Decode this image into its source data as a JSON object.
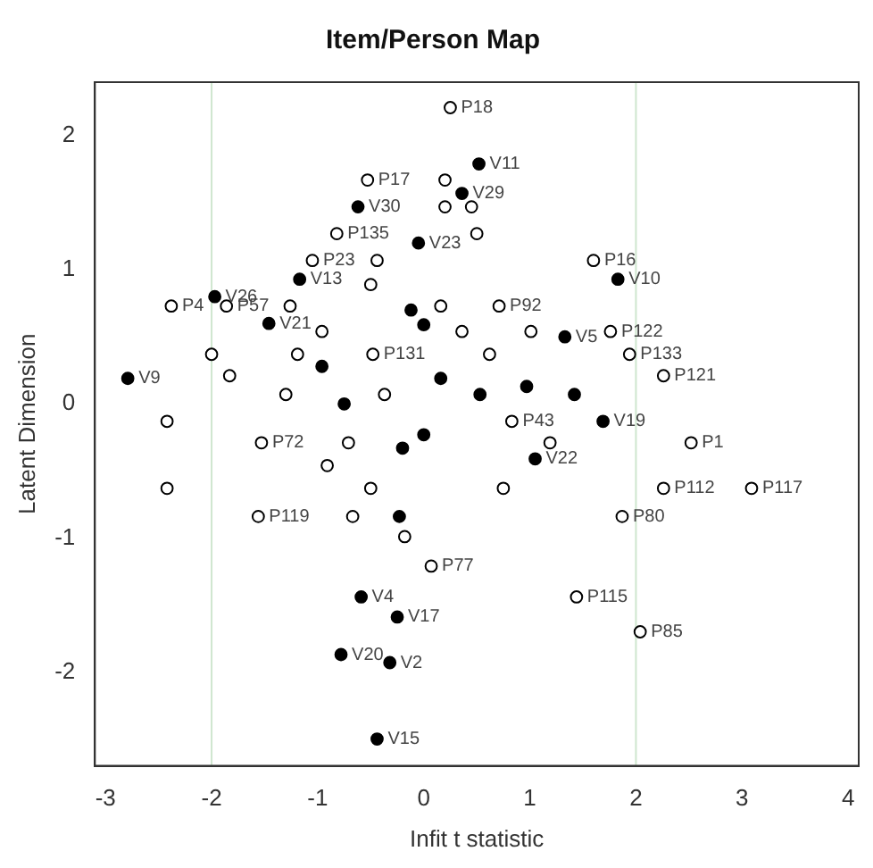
{
  "chart_data": {
    "type": "scatter",
    "title": "Item/Person Map",
    "xlabel": "Infit t statistic",
    "ylabel": "Latent Dimension",
    "xlim": [
      -3.1,
      4.1
    ],
    "ylim": [
      -2.7,
      2.4
    ],
    "xticks": [
      -3,
      -2,
      -1,
      0,
      1,
      2,
      3,
      4
    ],
    "yticks": [
      -2,
      -1,
      0,
      1,
      2
    ],
    "grid": false,
    "legend": false,
    "marker": "circle",
    "ref_lines": [
      {
        "axis": "x",
        "value": -2,
        "color": "#cfe6cf"
      },
      {
        "axis": "x",
        "value": 2,
        "color": "#cfe6cf"
      }
    ],
    "series": [
      {
        "color": "#000000",
        "x": [
          0.25,
          -0.53,
          0.2,
          0.2,
          0.45,
          -0.82,
          0.5,
          -1.05,
          -0.44,
          1.6,
          -0.5,
          -2.38,
          -1.86,
          -1.26,
          0.16,
          0.71,
          1.76,
          -0.96,
          0.36,
          1.01,
          -2.0,
          -1.19,
          -0.48,
          0.62,
          1.94,
          -1.83,
          2.26,
          -1.3,
          -0.37,
          -2.42,
          0.83,
          -1.53,
          -0.71,
          1.19,
          2.52,
          -0.91,
          -2.42,
          -0.5,
          0.75,
          2.26,
          3.09,
          -1.56,
          -0.67,
          1.87,
          -0.18,
          0.07,
          1.44,
          2.04
        ],
        "values": [
          2.21,
          1.67,
          1.67,
          1.47,
          1.47,
          1.27,
          1.27,
          1.07,
          1.07,
          1.07,
          0.89,
          0.73,
          0.73,
          0.73,
          0.73,
          0.73,
          0.54,
          0.54,
          0.54,
          0.54,
          0.37,
          0.37,
          0.37,
          0.37,
          0.37,
          0.21,
          0.21,
          0.07,
          0.07,
          -0.13,
          -0.13,
          -0.29,
          -0.29,
          -0.29,
          -0.29,
          -0.46,
          -0.63,
          -0.63,
          -0.63,
          -0.63,
          -0.63,
          -0.84,
          -0.84,
          -0.84,
          -0.99,
          -1.21,
          -1.44,
          -1.7
        ]
      },
      {
        "color": "#000000",
        "x": [
          0.52,
          0.36,
          -0.62,
          -0.05,
          -1.17,
          1.83,
          -1.97,
          -1.46,
          -0.12,
          0.0,
          1.33,
          -2.79,
          -0.96,
          -0.75,
          0.16,
          0.53,
          0.97,
          1.42,
          1.69,
          0.0,
          -0.2,
          1.05,
          -0.23,
          -0.59,
          -0.25,
          -0.78,
          -0.32,
          -0.44
        ],
        "values": [
          1.79,
          1.57,
          1.47,
          1.2,
          0.93,
          0.93,
          0.8,
          0.6,
          0.7,
          0.59,
          0.5,
          0.19,
          0.28,
          0.0,
          0.19,
          0.07,
          0.13,
          0.07,
          -0.13,
          -0.23,
          -0.33,
          -0.41,
          -0.84,
          -1.44,
          -1.59,
          -1.87,
          -1.93,
          -2.5
        ]
      }
    ],
    "annotations": [
      {
        "text": "P18",
        "x": 0.25,
        "y": 2.21
      },
      {
        "text": "P17",
        "x": -0.53,
        "y": 1.67
      },
      {
        "text": "V11",
        "x": 0.52,
        "y": 1.79
      },
      {
        "text": "V29",
        "x": 0.36,
        "y": 1.57
      },
      {
        "text": "V30",
        "x": -0.62,
        "y": 1.47
      },
      {
        "text": "P135",
        "x": -0.82,
        "y": 1.27
      },
      {
        "text": "V23",
        "x": -0.05,
        "y": 1.2
      },
      {
        "text": "P23",
        "x": -1.05,
        "y": 1.07
      },
      {
        "text": "P16",
        "x": 1.6,
        "y": 1.07
      },
      {
        "text": "V13",
        "x": -1.17,
        "y": 0.93
      },
      {
        "text": "V10",
        "x": 1.83,
        "y": 0.93
      },
      {
        "text": "V26",
        "x": -1.97,
        "y": 0.8
      },
      {
        "text": "P4",
        "x": -2.38,
        "y": 0.73
      },
      {
        "text": "P57",
        "x": -1.86,
        "y": 0.73
      },
      {
        "text": "P92",
        "x": 0.71,
        "y": 0.73
      },
      {
        "text": "V21",
        "x": -1.46,
        "y": 0.6
      },
      {
        "text": "P122",
        "x": 1.76,
        "y": 0.54
      },
      {
        "text": "V5",
        "x": 1.33,
        "y": 0.5
      },
      {
        "text": "P131",
        "x": -0.48,
        "y": 0.37
      },
      {
        "text": "P133",
        "x": 1.94,
        "y": 0.37
      },
      {
        "text": "V9",
        "x": -2.79,
        "y": 0.19
      },
      {
        "text": "P121",
        "x": 2.26,
        "y": 0.21
      },
      {
        "text": "P43",
        "x": 0.83,
        "y": -0.13
      },
      {
        "text": "V19",
        "x": 1.69,
        "y": -0.13
      },
      {
        "text": "P72",
        "x": -1.53,
        "y": -0.29
      },
      {
        "text": "P1",
        "x": 2.52,
        "y": -0.29
      },
      {
        "text": "V22",
        "x": 1.05,
        "y": -0.41
      },
      {
        "text": "P112",
        "x": 2.26,
        "y": -0.63
      },
      {
        "text": "P117",
        "x": 3.09,
        "y": -0.63
      },
      {
        "text": "P119",
        "x": -1.56,
        "y": -0.84
      },
      {
        "text": "P80",
        "x": 1.87,
        "y": -0.84
      },
      {
        "text": "P77",
        "x": 0.07,
        "y": -1.21
      },
      {
        "text": "V4",
        "x": -0.59,
        "y": -1.44
      },
      {
        "text": "P115",
        "x": 1.44,
        "y": -1.44
      },
      {
        "text": "V17",
        "x": -0.25,
        "y": -1.59
      },
      {
        "text": "P85",
        "x": 2.04,
        "y": -1.7
      },
      {
        "text": "V20",
        "x": -0.78,
        "y": -1.87
      },
      {
        "text": "V2",
        "x": -0.32,
        "y": -1.93
      },
      {
        "text": "V15",
        "x": -0.44,
        "y": -2.5
      }
    ]
  }
}
